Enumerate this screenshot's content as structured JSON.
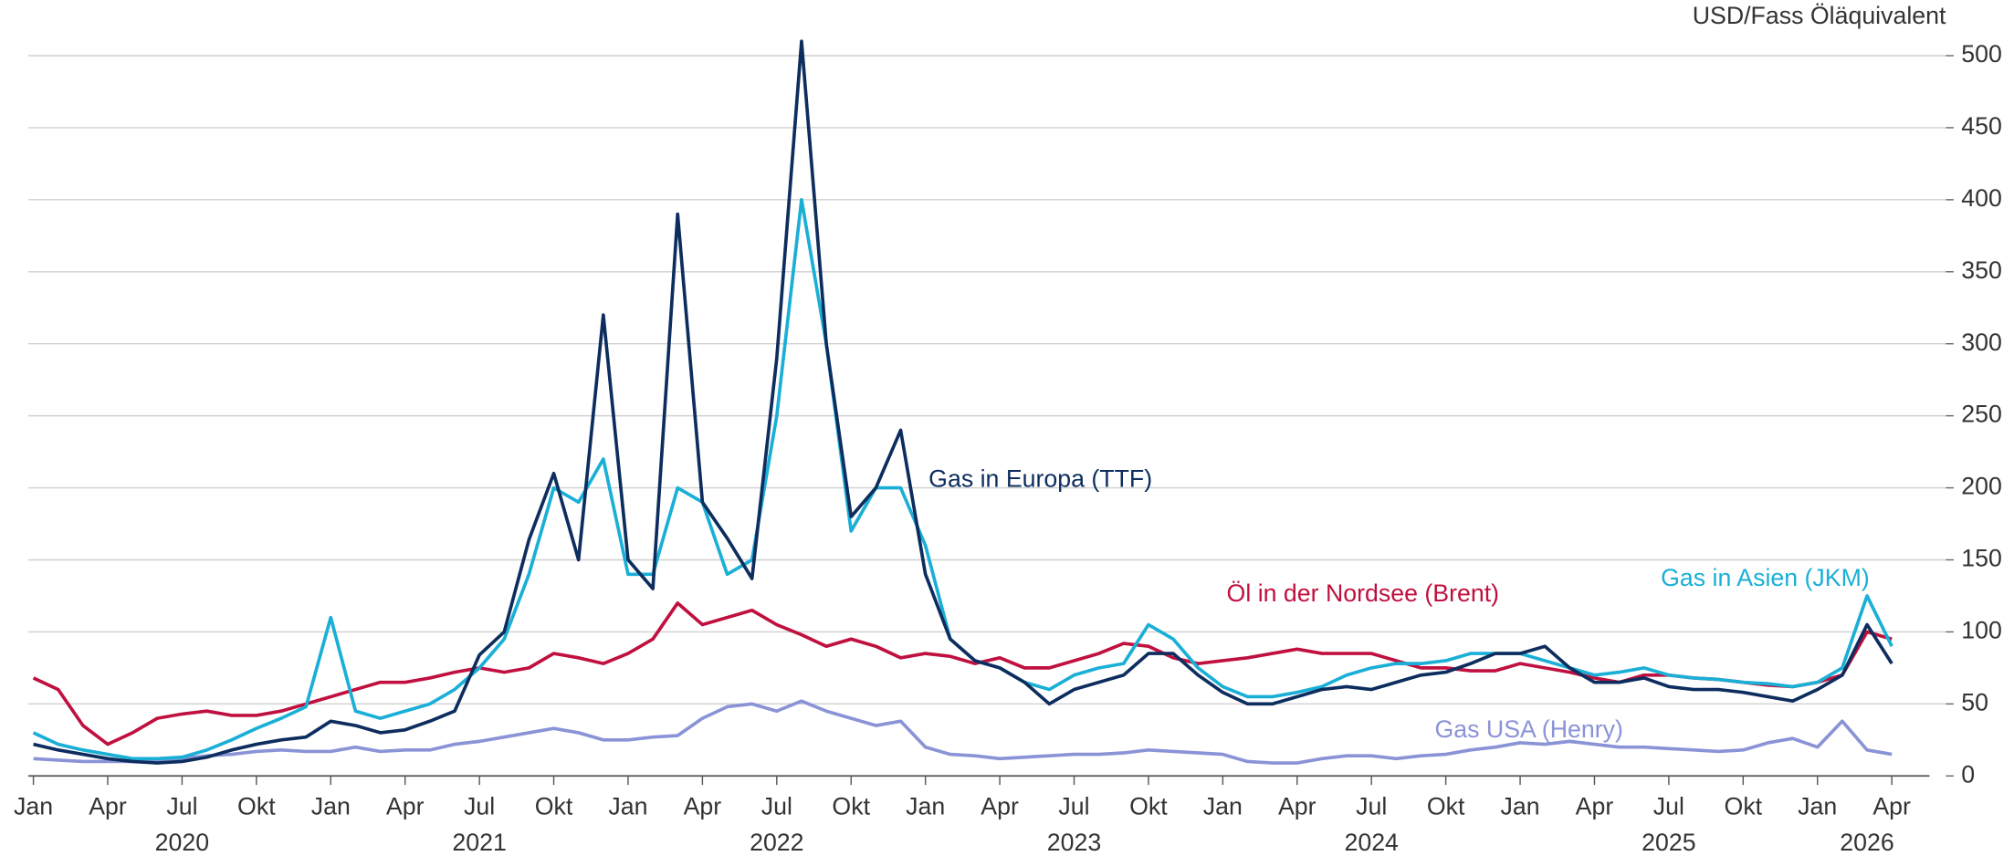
{
  "chart_data": {
    "type": "line",
    "y_axis_label": "USD/Fass Öläquivalent",
    "x": [
      "2020-01",
      "2020-02",
      "2020-03",
      "2020-04",
      "2020-05",
      "2020-06",
      "2020-07",
      "2020-08",
      "2020-09",
      "2020-10",
      "2020-11",
      "2020-12",
      "2021-01",
      "2021-02",
      "2021-03",
      "2021-04",
      "2021-05",
      "2021-06",
      "2021-07",
      "2021-08",
      "2021-09",
      "2021-10",
      "2021-11",
      "2021-12",
      "2022-01",
      "2022-02",
      "2022-03",
      "2022-04",
      "2022-05",
      "2022-06",
      "2022-07",
      "2022-08",
      "2022-09",
      "2022-10",
      "2022-11",
      "2022-12",
      "2023-01",
      "2023-02",
      "2023-03",
      "2023-04",
      "2023-05",
      "2023-06",
      "2023-07",
      "2023-08",
      "2023-09",
      "2023-10",
      "2023-11",
      "2023-12",
      "2024-01",
      "2024-02",
      "2024-03",
      "2024-04",
      "2024-05",
      "2024-06",
      "2024-07",
      "2024-08",
      "2024-09",
      "2024-10",
      "2024-11",
      "2024-12",
      "2025-01",
      "2025-02",
      "2025-03",
      "2025-04",
      "2025-05",
      "2025-06",
      "2025-07",
      "2025-08",
      "2025-09",
      "2025-10",
      "2025-11",
      "2025-12",
      "2026-01",
      "2026-02",
      "2026-03",
      "2026-04"
    ],
    "series": [
      {
        "name": "Gas in Europa (TTF)",
        "color": "#0d2d5e",
        "values": [
          22,
          18,
          15,
          12,
          10,
          9,
          10,
          13,
          18,
          22,
          25,
          27,
          38,
          35,
          30,
          32,
          38,
          45,
          84,
          100,
          164,
          210,
          150,
          320,
          150,
          130,
          390,
          190,
          165,
          137,
          290,
          510,
          300,
          180,
          200,
          240,
          140,
          95,
          80,
          75,
          65,
          50,
          60,
          65,
          70,
          85,
          85,
          70,
          58,
          50,
          50,
          55,
          60,
          62,
          60,
          65,
          70,
          72,
          78,
          85,
          85,
          90,
          75,
          65,
          65,
          68,
          62,
          60,
          60,
          58,
          55,
          52,
          60,
          70,
          105,
          78
        ]
      },
      {
        "name": "Gas in Asien (JKM)",
        "color": "#1aafd6",
        "values": [
          30,
          22,
          18,
          15,
          12,
          12,
          13,
          18,
          25,
          33,
          40,
          48,
          110,
          45,
          40,
          45,
          50,
          60,
          75,
          95,
          140,
          200,
          190,
          220,
          140,
          140,
          200,
          190,
          140,
          150,
          250,
          400,
          300,
          170,
          200,
          200,
          160,
          95,
          80,
          75,
          65,
          60,
          70,
          75,
          78,
          105,
          95,
          75,
          62,
          55,
          55,
          58,
          62,
          70,
          75,
          78,
          78,
          80,
          85,
          85,
          85,
          80,
          75,
          70,
          72,
          75,
          70,
          68,
          67,
          65,
          64,
          62,
          65,
          75,
          125,
          90
        ]
      },
      {
        "name": "Öl in der Nordsee (Brent)",
        "color": "#c0103f",
        "values": [
          68,
          60,
          35,
          22,
          30,
          40,
          43,
          45,
          42,
          42,
          45,
          50,
          55,
          60,
          65,
          65,
          68,
          72,
          75,
          72,
          75,
          85,
          82,
          78,
          85,
          95,
          120,
          105,
          110,
          115,
          105,
          98,
          90,
          95,
          90,
          82,
          85,
          83,
          78,
          82,
          75,
          75,
          80,
          85,
          92,
          90,
          82,
          78,
          80,
          82,
          85,
          88,
          85,
          85,
          85,
          80,
          75,
          75,
          73,
          73,
          78,
          75,
          72,
          68,
          65,
          70,
          70,
          68,
          67,
          65,
          63,
          62,
          65,
          70,
          100,
          95
        ]
      },
      {
        "name": "Gas USA (Henry)",
        "color": "#8a93d6",
        "values": [
          12,
          11,
          10,
          10,
          10,
          11,
          12,
          14,
          15,
          17,
          18,
          17,
          17,
          20,
          17,
          18,
          18,
          22,
          24,
          27,
          30,
          33,
          30,
          25,
          25,
          27,
          28,
          40,
          48,
          50,
          45,
          52,
          45,
          40,
          35,
          38,
          20,
          15,
          14,
          12,
          13,
          14,
          15,
          15,
          16,
          18,
          17,
          16,
          15,
          10,
          9,
          9,
          12,
          14,
          14,
          12,
          14,
          15,
          18,
          20,
          23,
          22,
          24,
          22,
          20,
          20,
          19,
          18,
          17,
          18,
          23,
          26,
          20,
          38,
          18,
          15
        ]
      }
    ],
    "xlim": [
      "2020-01",
      "2026-05"
    ],
    "xticks": [
      {
        "value": "2020-01",
        "label": "Jan"
      },
      {
        "value": "2020-04",
        "label": "Apr"
      },
      {
        "value": "2020-07",
        "label": "Jul"
      },
      {
        "value": "2020-10",
        "label": "Okt"
      },
      {
        "value": "2021-01",
        "label": "Jan"
      },
      {
        "value": "2021-04",
        "label": "Apr"
      },
      {
        "value": "2021-07",
        "label": "Jul"
      },
      {
        "value": "2021-10",
        "label": "Okt"
      },
      {
        "value": "2022-01",
        "label": "Jan"
      },
      {
        "value": "2022-04",
        "label": "Apr"
      },
      {
        "value": "2022-07",
        "label": "Jul"
      },
      {
        "value": "2022-10",
        "label": "Okt"
      },
      {
        "value": "2023-01",
        "label": "Jan"
      },
      {
        "value": "2023-04",
        "label": "Apr"
      },
      {
        "value": "2023-07",
        "label": "Jul"
      },
      {
        "value": "2023-10",
        "label": "Okt"
      },
      {
        "value": "2024-01",
        "label": "Jan"
      },
      {
        "value": "2024-04",
        "label": "Apr"
      },
      {
        "value": "2024-07",
        "label": "Jul"
      },
      {
        "value": "2024-10",
        "label": "Okt"
      },
      {
        "value": "2025-01",
        "label": "Jan"
      },
      {
        "value": "2025-04",
        "label": "Apr"
      },
      {
        "value": "2025-07",
        "label": "Jul"
      },
      {
        "value": "2025-10",
        "label": "Okt"
      },
      {
        "value": "2026-01",
        "label": "Jan"
      },
      {
        "value": "2026-04",
        "label": "Apr"
      }
    ],
    "x_group_labels": [
      "2020",
      "2021",
      "2022",
      "2023",
      "2024",
      "2025",
      "2026"
    ],
    "ylim": [
      0,
      515
    ],
    "yticks": [
      0,
      50,
      100,
      150,
      200,
      250,
      300,
      350,
      400,
      450,
      500
    ],
    "grid": true
  }
}
